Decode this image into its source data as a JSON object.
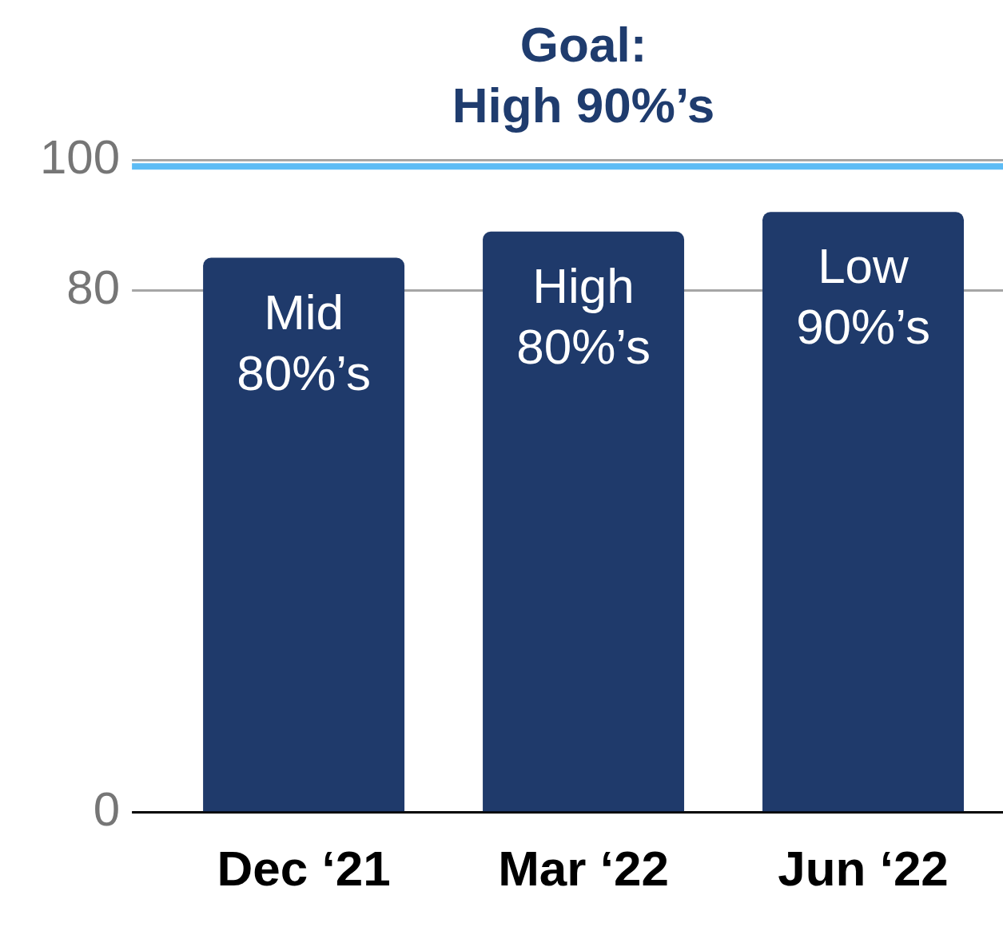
{
  "chart_data": {
    "type": "bar",
    "categories": [
      "Dec ‘21",
      "Mar ‘22",
      "Jun ‘22"
    ],
    "values": [
      85,
      89,
      92
    ],
    "color": "#1f3a6b",
    "value_labels": [
      "Mid 80%’s",
      "High 80%’s",
      "Low 90%’s"
    ],
    "ylim": [
      0,
      100
    ],
    "yticks": [
      0,
      80,
      100
    ],
    "grid": "y",
    "ref_lines": [
      {
        "axis": "y",
        "value": 99,
        "label": "Goal: High 90%’s",
        "color": "#5dbcf5"
      }
    ]
  }
}
